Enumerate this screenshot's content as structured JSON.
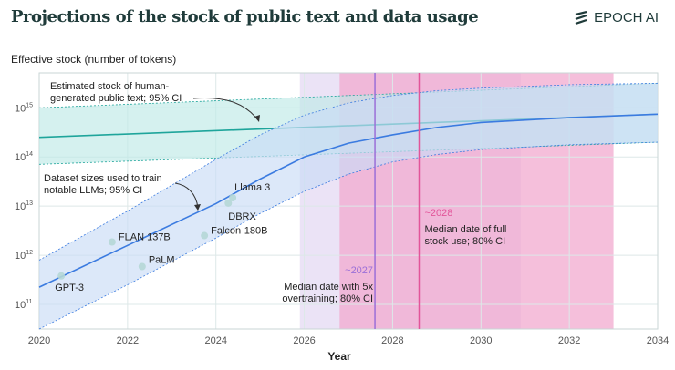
{
  "header": {
    "title": "Projections of the stock of public text and data usage",
    "brand": "EPOCH AI"
  },
  "chart_data": {
    "type": "line",
    "title": "Projections of the stock of public text and data usage",
    "ylabel": "Effective stock (number of tokens)",
    "xlabel": "Year",
    "yscale": "log",
    "xlim": [
      2020,
      2034
    ],
    "ylim_log10": [
      10.5,
      15.71
    ],
    "xticks": [
      2020,
      2022,
      2024,
      2026,
      2028,
      2030,
      2032,
      2034
    ],
    "yticks_log10": [
      11,
      12,
      13,
      14,
      15
    ],
    "ytick_labels": [
      "10",
      "10",
      "10",
      "10",
      "10"
    ],
    "ytick_exponents": [
      "11",
      "12",
      "13",
      "14",
      "15"
    ],
    "grid": true,
    "series": [
      {
        "name": "Estimated stock of human-generated public text",
        "color": "#1fa59b",
        "x": [
          2020,
          2034
        ],
        "log10": [
          14.4,
          14.87
        ],
        "ci_upper": [
          15.0,
          15.5
        ],
        "ci_lower": [
          13.85,
          14.3
        ],
        "band_color": "#bfeae6"
      },
      {
        "name": "Dataset sizes used to train notable LLMs",
        "color": "#3b7be0",
        "x": [
          2020,
          2022,
          2024,
          2025,
          2026,
          2027,
          2028,
          2029,
          2030,
          2032,
          2034
        ],
        "log10": [
          11.35,
          12.2,
          13.05,
          13.55,
          14.0,
          14.28,
          14.45,
          14.6,
          14.7,
          14.8,
          14.87
        ],
        "ci_upper": [
          11.9,
          12.9,
          13.95,
          14.45,
          14.85,
          15.1,
          15.25,
          15.35,
          15.4,
          15.47,
          15.5
        ],
        "ci_lower": [
          10.5,
          11.4,
          12.35,
          12.85,
          13.3,
          13.65,
          13.9,
          14.05,
          14.15,
          14.25,
          14.3
        ],
        "band_color": "#c9dbf6"
      }
    ],
    "points": [
      {
        "label": "GPT-3",
        "year": 2020.5,
        "log10": 11.58
      },
      {
        "label": "FLAN 137B",
        "year": 2021.65,
        "log10": 12.27
      },
      {
        "label": "PaLM",
        "year": 2022.33,
        "log10": 11.77
      },
      {
        "label": "Falcon-180B",
        "year": 2023.74,
        "log10": 12.4
      },
      {
        "label": "DBRX",
        "year": 2024.28,
        "log10": 13.06
      },
      {
        "label": "Llama 3",
        "year": 2024.38,
        "log10": 13.17
      }
    ],
    "intervals": [
      {
        "name": "5x overtraining 80% CI",
        "start": 2025.9,
        "end": 2030.9,
        "median": 2027.6,
        "color": "#9b6fd8",
        "fill": "#ddd0f0",
        "median_label": "~2027",
        "label_lines": [
          "Median date with 5x",
          "overtraining; 80% CI"
        ]
      },
      {
        "name": "Full stock use 80% CI",
        "start": 2026.8,
        "end": 2033.0,
        "median": 2028.6,
        "color": "#e2559a",
        "fill": "#f2a9cf",
        "median_label": "~2028",
        "label_lines": [
          "Median date of full",
          "stock use; 80% CI"
        ]
      }
    ],
    "annotations": [
      {
        "lines": [
          "Estimated stock of human-",
          "generated public text; 95% CI"
        ]
      },
      {
        "lines": [
          "Dataset sizes used to train",
          "notable LLMs; 95% CI"
        ]
      }
    ]
  }
}
